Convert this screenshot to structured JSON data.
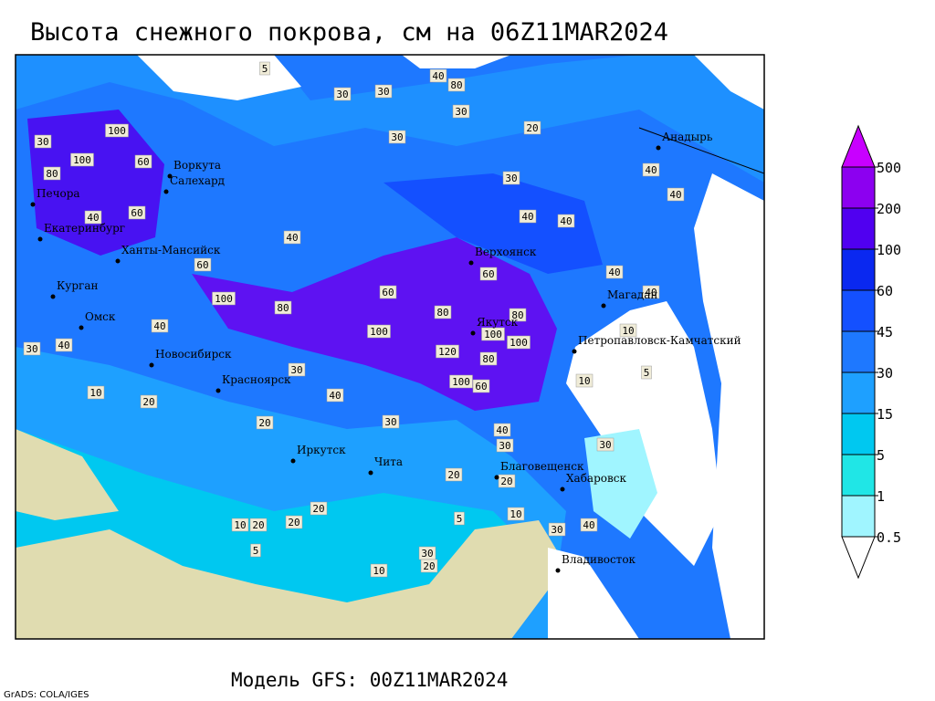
{
  "title": "Высота снежного покрова, см на 06Z11MAR2024",
  "footer": "Модель GFS: 00Z11MAR2024",
  "credit": "GrADS: COLA/IGES",
  "legend": {
    "levels": [
      0.5,
      1,
      5,
      15,
      30,
      45,
      60,
      100,
      200,
      500
    ],
    "colors": [
      "#ffffff",
      "#a0f5ff",
      "#20e6e6",
      "#00c8f0",
      "#1ea0ff",
      "#1e78ff",
      "#1450ff",
      "#0a28f0",
      "#5000f0",
      "#8c00f0",
      "#c800ff"
    ]
  },
  "cities": [
    "Воркута",
    "Салехард",
    "Печора",
    "Екатеринбург",
    "Ханты-Мансийск",
    "Курган",
    "Омск",
    "Новосибирск",
    "Красноярск",
    "Иркутск",
    "Чита",
    "Верхоянск",
    "Якутск",
    "Магадан",
    "Анадырь",
    "Петропавловск-Камчатский",
    "Благовещенск",
    "Хабаровск",
    "Владивосток"
  ],
  "map_labels": [
    5,
    30,
    30,
    40,
    80,
    30,
    30,
    20,
    30,
    40,
    40,
    40,
    40,
    40,
    60,
    40,
    60,
    100,
    80,
    60,
    100,
    80,
    80,
    100,
    100,
    120,
    100,
    60,
    80,
    40,
    30,
    40,
    10,
    20,
    30,
    40,
    20,
    30,
    40,
    30,
    20,
    20,
    10,
    5,
    20,
    20,
    10,
    20,
    5,
    10,
    30,
    20,
    10,
    10,
    5,
    30,
    40,
    30,
    40,
    100,
    100,
    80,
    40,
    60,
    60,
    30
  ]
}
